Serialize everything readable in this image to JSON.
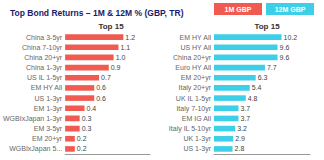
{
  "chart_data": [
    {
      "type": "bar",
      "orientation": "horizontal",
      "title": "Top Bond Returns – 1M & 12M % (GBP, TR)",
      "subtitle": "Top 15",
      "annotations": [
        "1M GBP"
      ],
      "categories": [
        "China 3-5yr",
        "China 7-10yr",
        "China 20+yr",
        "China 1-3yr",
        "US IL 1-5yr",
        "EM HY All",
        "US 1-3yr",
        "EM 1-3yr",
        "WGBIxJapan 1-3yr",
        "EM 3-5yr",
        "EM 20+yr",
        "WGBIxJapan 5..."
      ],
      "values": [
        1.2,
        1.1,
        1.0,
        0.9,
        0.7,
        0.6,
        0.6,
        0.4,
        0.3,
        0.3,
        0.2,
        0.2
      ],
      "value_labels": [
        "1.2",
        "1.1",
        "1.0",
        "0.9",
        "0.7",
        "0.6",
        "0.6",
        "0.4",
        "0.3",
        "0.3",
        "0.2",
        "0.2"
      ],
      "color": "#f05a50",
      "xlim": [
        0,
        1.75
      ],
      "data_labels": true,
      "tick_labels": "y",
      "grid": false
    },
    {
      "type": "bar",
      "orientation": "horizontal",
      "subtitle": "Top 15",
      "annotations": [
        "12M GBP"
      ],
      "categories": [
        "EM HY All",
        "US HY All",
        "China 20+yr",
        "Euro HY All",
        "EM 20+yr",
        "Italy 20+yr",
        "UK IL 1-5yr",
        "Italy 7-10yr",
        "EM IG All",
        "Italy IL 5-10yr",
        "UK 1-3yr",
        "US 1-3yr"
      ],
      "values": [
        10.2,
        9.6,
        9.6,
        7.7,
        6.3,
        5.4,
        4.8,
        3.7,
        3.7,
        3.2,
        2.9,
        2.8
      ],
      "color": "#3ecfe8",
      "xlim": [
        0,
        14.5
      ],
      "data_labels": true,
      "tick_labels": "y",
      "grid": false
    }
  ]
}
